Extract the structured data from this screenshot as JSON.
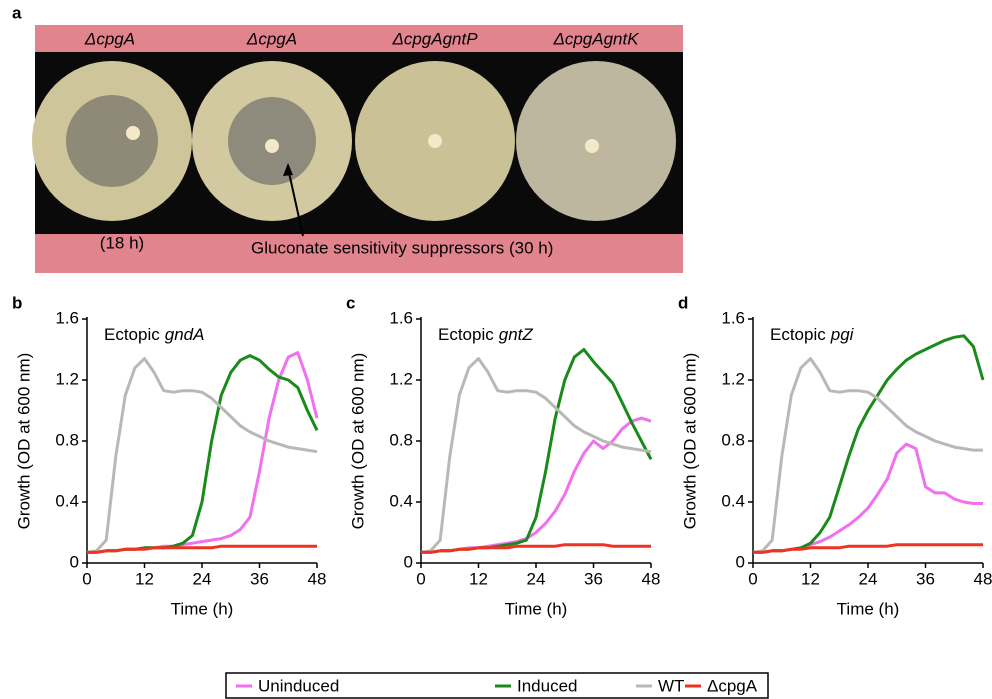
{
  "panel_a": {
    "label": "a",
    "plate_labels": [
      "ΔcpgA",
      "ΔcpgA",
      "ΔcpgAgntP",
      "ΔcpgAgntK"
    ],
    "time_note": "(18 h)",
    "arrow_note": "Gluconate sensitivity suppressors (30 h)"
  },
  "chart_data": [
    {
      "type": "line",
      "panel": "b",
      "title_prefix": "Ectopic",
      "title_gene": "gndA",
      "xlabel": "Time (h)",
      "ylabel": "Growth (OD at 600 nm)",
      "x": [
        0,
        2,
        4,
        6,
        8,
        10,
        12,
        14,
        16,
        18,
        20,
        22,
        24,
        26,
        28,
        30,
        32,
        34,
        36,
        38,
        40,
        42,
        44,
        46,
        48
      ],
      "xlim": [
        0,
        48
      ],
      "xticks": [
        0,
        12,
        24,
        36,
        48
      ],
      "ylim": [
        0,
        1.6
      ],
      "yticks": [
        0,
        0.4,
        0.8,
        1.2,
        1.6
      ],
      "series": [
        {
          "name": "Uninduced",
          "color": "#f070f0",
          "values": [
            0.07,
            0.07,
            0.08,
            0.08,
            0.09,
            0.09,
            0.1,
            0.1,
            0.11,
            0.11,
            0.12,
            0.13,
            0.14,
            0.15,
            0.16,
            0.18,
            0.22,
            0.3,
            0.6,
            0.95,
            1.2,
            1.35,
            1.38,
            1.2,
            0.95
          ]
        },
        {
          "name": "Induced",
          "color": "#1a8a1a",
          "values": [
            0.07,
            0.07,
            0.08,
            0.08,
            0.09,
            0.09,
            0.1,
            0.1,
            0.1,
            0.11,
            0.13,
            0.18,
            0.4,
            0.8,
            1.1,
            1.25,
            1.33,
            1.36,
            1.33,
            1.27,
            1.22,
            1.2,
            1.15,
            1.0,
            0.87
          ]
        },
        {
          "name": "WT",
          "color": "#b8b8b8",
          "values": [
            0.07,
            0.08,
            0.15,
            0.7,
            1.1,
            1.28,
            1.34,
            1.25,
            1.13,
            1.12,
            1.13,
            1.13,
            1.12,
            1.08,
            1.02,
            0.96,
            0.9,
            0.86,
            0.83,
            0.8,
            0.78,
            0.76,
            0.75,
            0.74,
            0.73
          ]
        },
        {
          "name": "ΔcpgA",
          "color": "#ee3322",
          "values": [
            0.07,
            0.07,
            0.08,
            0.08,
            0.09,
            0.09,
            0.09,
            0.1,
            0.1,
            0.1,
            0.1,
            0.1,
            0.1,
            0.1,
            0.11,
            0.11,
            0.11,
            0.11,
            0.11,
            0.11,
            0.11,
            0.11,
            0.11,
            0.11,
            0.11
          ]
        }
      ]
    },
    {
      "type": "line",
      "panel": "c",
      "title_prefix": "Ectopic",
      "title_gene": "gntZ",
      "xlabel": "Time (h)",
      "ylabel": "Growth (OD at 600 nm)",
      "x": [
        0,
        2,
        4,
        6,
        8,
        10,
        12,
        14,
        16,
        18,
        20,
        22,
        24,
        26,
        28,
        30,
        32,
        34,
        36,
        38,
        40,
        42,
        44,
        46,
        48
      ],
      "xlim": [
        0,
        48
      ],
      "xticks": [
        0,
        12,
        24,
        36,
        48
      ],
      "ylim": [
        0,
        1.6
      ],
      "yticks": [
        0,
        0.4,
        0.8,
        1.2,
        1.6
      ],
      "series": [
        {
          "name": "Uninduced",
          "color": "#f070f0",
          "values": [
            0.07,
            0.07,
            0.08,
            0.08,
            0.09,
            0.1,
            0.1,
            0.11,
            0.12,
            0.13,
            0.14,
            0.16,
            0.2,
            0.26,
            0.34,
            0.45,
            0.6,
            0.72,
            0.8,
            0.75,
            0.8,
            0.88,
            0.93,
            0.95,
            0.93
          ]
        },
        {
          "name": "Induced",
          "color": "#1a8a1a",
          "values": [
            0.07,
            0.07,
            0.08,
            0.08,
            0.09,
            0.09,
            0.1,
            0.1,
            0.11,
            0.12,
            0.13,
            0.15,
            0.3,
            0.6,
            0.95,
            1.2,
            1.35,
            1.4,
            1.32,
            1.25,
            1.18,
            1.05,
            0.92,
            0.8,
            0.68
          ]
        },
        {
          "name": "WT",
          "color": "#b8b8b8",
          "values": [
            0.07,
            0.08,
            0.15,
            0.7,
            1.1,
            1.28,
            1.34,
            1.25,
            1.13,
            1.12,
            1.13,
            1.13,
            1.12,
            1.08,
            1.02,
            0.96,
            0.9,
            0.86,
            0.83,
            0.8,
            0.78,
            0.76,
            0.75,
            0.74,
            0.73
          ]
        },
        {
          "name": "ΔcpgA",
          "color": "#ee3322",
          "values": [
            0.07,
            0.07,
            0.08,
            0.08,
            0.09,
            0.09,
            0.1,
            0.1,
            0.1,
            0.1,
            0.11,
            0.11,
            0.11,
            0.11,
            0.11,
            0.12,
            0.12,
            0.12,
            0.12,
            0.12,
            0.11,
            0.11,
            0.11,
            0.11,
            0.11
          ]
        }
      ]
    },
    {
      "type": "line",
      "panel": "d",
      "title_prefix": "Ectopic",
      "title_gene": "pgi",
      "xlabel": "Time (h)",
      "ylabel": "Growth (OD at 600 nm)",
      "x": [
        0,
        2,
        4,
        6,
        8,
        10,
        12,
        14,
        16,
        18,
        20,
        22,
        24,
        26,
        28,
        30,
        32,
        34,
        36,
        38,
        40,
        42,
        44,
        46,
        48
      ],
      "xlim": [
        0,
        48
      ],
      "xticks": [
        0,
        12,
        24,
        36,
        48
      ],
      "ylim": [
        0,
        1.6
      ],
      "yticks": [
        0,
        0.4,
        0.8,
        1.2,
        1.6
      ],
      "series": [
        {
          "name": "Uninduced",
          "color": "#f070f0",
          "values": [
            0.07,
            0.07,
            0.08,
            0.08,
            0.09,
            0.1,
            0.12,
            0.14,
            0.17,
            0.21,
            0.25,
            0.3,
            0.36,
            0.45,
            0.55,
            0.72,
            0.78,
            0.75,
            0.5,
            0.46,
            0.46,
            0.42,
            0.4,
            0.39,
            0.39
          ]
        },
        {
          "name": "Induced",
          "color": "#1a8a1a",
          "values": [
            0.07,
            0.07,
            0.08,
            0.08,
            0.09,
            0.1,
            0.13,
            0.2,
            0.3,
            0.5,
            0.7,
            0.88,
            1.0,
            1.1,
            1.2,
            1.27,
            1.33,
            1.37,
            1.4,
            1.43,
            1.46,
            1.48,
            1.49,
            1.42,
            1.2
          ]
        },
        {
          "name": "WT",
          "color": "#b8b8b8",
          "values": [
            0.07,
            0.08,
            0.15,
            0.7,
            1.1,
            1.28,
            1.34,
            1.25,
            1.13,
            1.12,
            1.13,
            1.13,
            1.12,
            1.08,
            1.02,
            0.96,
            0.9,
            0.86,
            0.83,
            0.8,
            0.78,
            0.76,
            0.75,
            0.74,
            0.74
          ]
        },
        {
          "name": "ΔcpgA",
          "color": "#ee3322",
          "values": [
            0.07,
            0.07,
            0.08,
            0.08,
            0.09,
            0.09,
            0.1,
            0.1,
            0.1,
            0.1,
            0.11,
            0.11,
            0.11,
            0.11,
            0.11,
            0.12,
            0.12,
            0.12,
            0.12,
            0.12,
            0.12,
            0.12,
            0.12,
            0.12,
            0.12
          ]
        }
      ]
    }
  ]
}
